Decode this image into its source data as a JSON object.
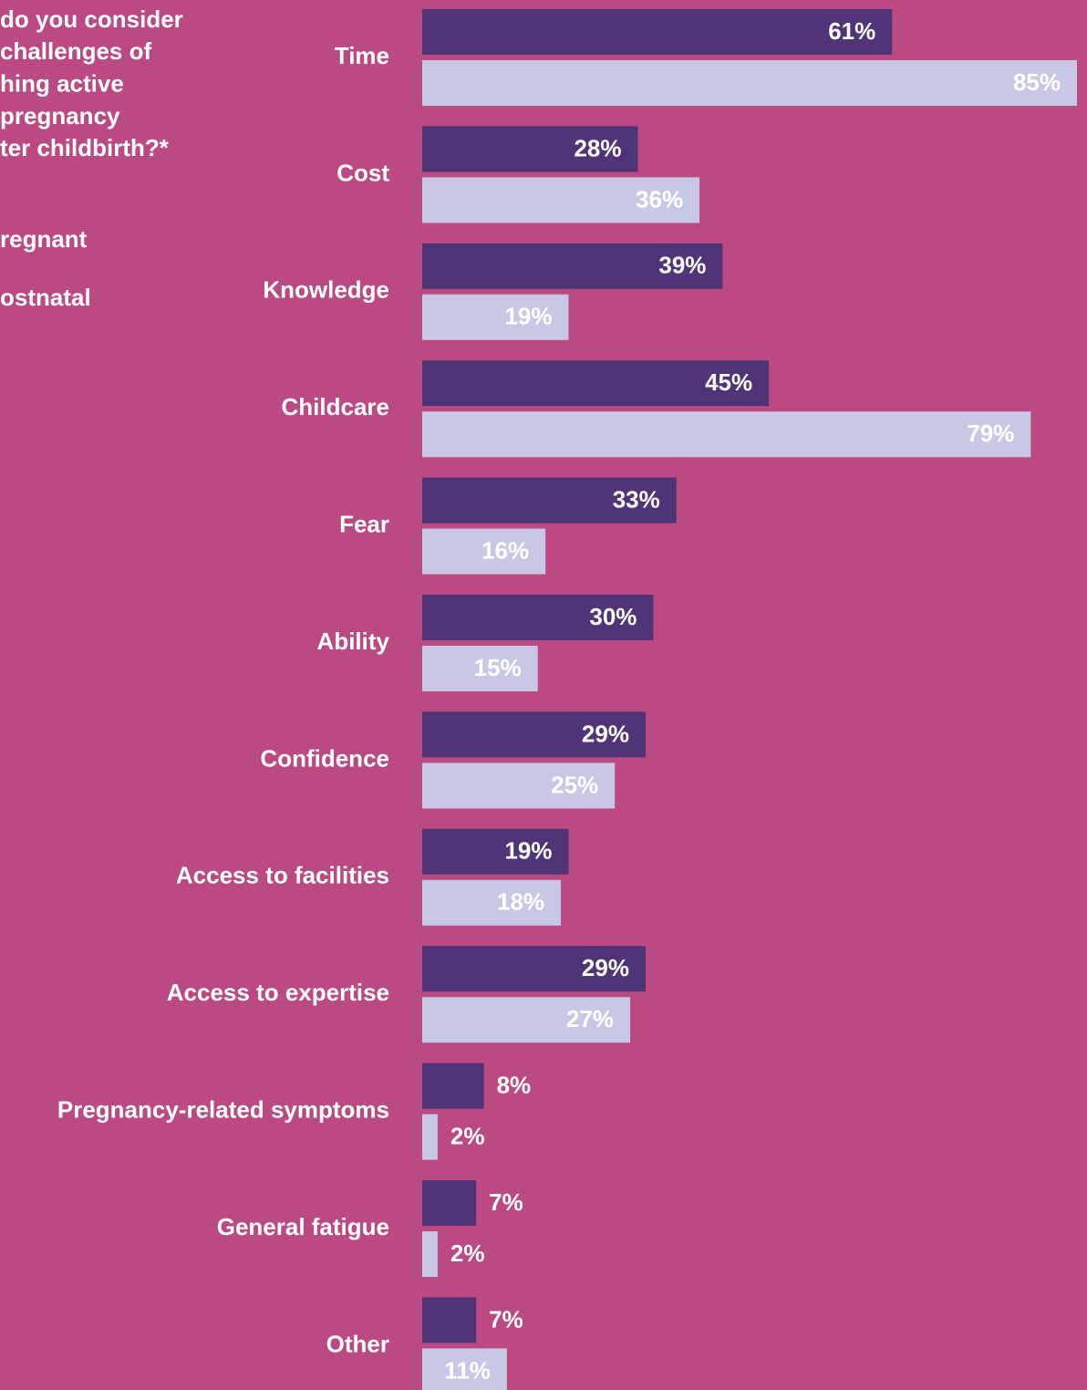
{
  "chart_data": {
    "type": "bar",
    "orientation": "horizontal",
    "title": [
      "do you consider",
      "challenges of",
      "hing active",
      "pregnancy",
      "ter childbirth?*"
    ],
    "categories": [
      "Time",
      "Cost",
      "Knowledge",
      "Childcare",
      "Fear",
      "Ability",
      "Confidence",
      "Access to facilities",
      "Access to expertise",
      "Pregnancy-related symptoms",
      "General fatigue",
      "Other"
    ],
    "series": [
      {
        "name": "regnant",
        "color": "#4f3577",
        "label_color": "#ffffff",
        "values": [
          61,
          28,
          39,
          45,
          33,
          30,
          29,
          19,
          29,
          8,
          7,
          7
        ],
        "value_labels": [
          "61%",
          "28%",
          "39%",
          "45%",
          "33%",
          "30%",
          "29%",
          "19%",
          "29%",
          "8%",
          "7%",
          "7%"
        ]
      },
      {
        "name": "ostnatal",
        "color": "#c8c8e6",
        "label_color": "#000000",
        "values": [
          85,
          36,
          19,
          79,
          16,
          15,
          25,
          18,
          27,
          2,
          2,
          11
        ],
        "value_labels": [
          "85%",
          "36%",
          "19%",
          "79%",
          "16%",
          "15%",
          "25%",
          "18%",
          "27%",
          "2%",
          "2%",
          "11%"
        ]
      }
    ]
  }
}
